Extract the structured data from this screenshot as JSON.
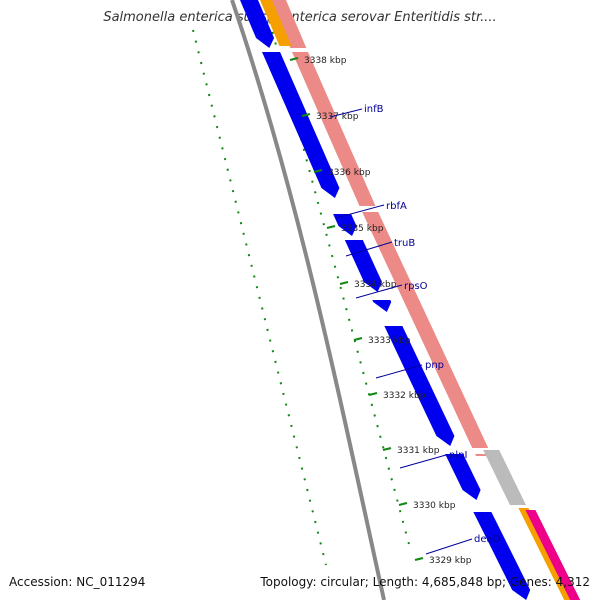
{
  "title": "Salmonella enterica subsp. enterica serovar Enteritidis str....",
  "footer": {
    "accession": "Accession: NC_011294",
    "summary": "Topology: circular; Length: 4,685,848 bp; Genes: 4,312"
  },
  "ticks": [
    {
      "label": "3338 kbp"
    },
    {
      "label": "3337 kbp"
    },
    {
      "label": "3336 kbp"
    },
    {
      "label": "3335 kbp"
    },
    {
      "label": "3334 kbp"
    },
    {
      "label": "3333 kbp"
    },
    {
      "label": "3332 kbp"
    },
    {
      "label": "3331 kbp"
    },
    {
      "label": "3330 kbp"
    },
    {
      "label": "3329 kbp"
    }
  ],
  "genes": [
    {
      "name": "infB"
    },
    {
      "name": "rbfA"
    },
    {
      "name": "truB"
    },
    {
      "name": "rpsO"
    },
    {
      "name": "pnp"
    },
    {
      "name": "nlpI"
    },
    {
      "name": "deaD"
    }
  ],
  "colors": {
    "cds": "#0000ee",
    "rna": "#ec8a88",
    "gray_feature": "#bbbbbb",
    "orange_feature": "#f5a000",
    "magenta_feature": "#ee0088",
    "gc_dots": "#118811",
    "label_blue": "#000099",
    "backbone": "#888888"
  }
}
